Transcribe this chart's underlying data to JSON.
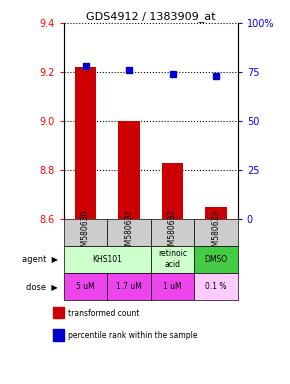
{
  "title": "GDS4912 / 1383909_at",
  "samples": [
    "GSM580630",
    "GSM580631",
    "GSM580632",
    "GSM580633"
  ],
  "bar_values": [
    9.22,
    9.0,
    8.83,
    8.65
  ],
  "dot_values": [
    78,
    76,
    74,
    73
  ],
  "ylim_left": [
    8.6,
    9.4
  ],
  "ylim_right": [
    0,
    100
  ],
  "yticks_left": [
    8.6,
    8.8,
    9.0,
    9.2,
    9.4
  ],
  "yticks_right": [
    0,
    25,
    50,
    75,
    100
  ],
  "bar_color": "#cc0000",
  "dot_color": "#0000cc",
  "bar_baseline": 8.6,
  "sample_bg": "#cccccc",
  "agent_spans": [
    [
      0,
      2,
      "KHS101",
      "#ccffcc"
    ],
    [
      2,
      3,
      "retinoic\nacid",
      "#ccffcc"
    ],
    [
      3,
      4,
      "DMSO",
      "#44cc44"
    ]
  ],
  "dose_values": [
    "5 uM",
    "1.7 uM",
    "1 uM",
    "0.1 %"
  ],
  "dose_colors": [
    "#ee44ee",
    "#ee44ee",
    "#ee44ee",
    "#ffccff"
  ],
  "legend_bar_color": "#cc0000",
  "legend_dot_color": "#0000cc",
  "legend_bar_label": "transformed count",
  "legend_dot_label": "percentile rank within the sample"
}
